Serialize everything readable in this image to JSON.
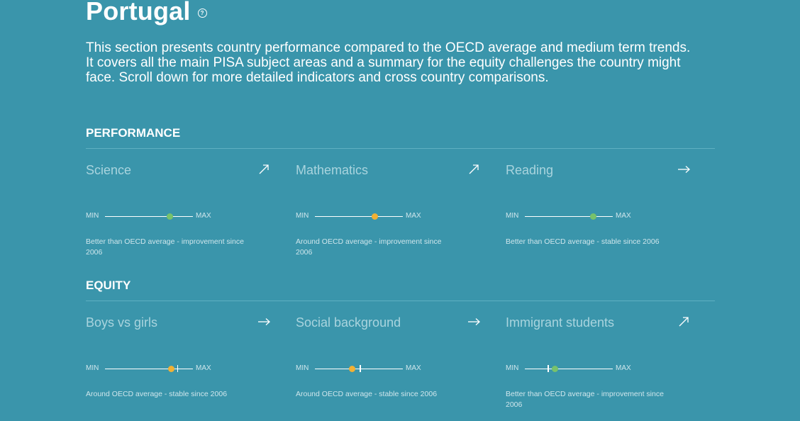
{
  "title": "Portugal",
  "help_icon": "question-circle-icon",
  "intro": "This section presents country performance compared to the OECD average and medium term trends. It covers all the main PISA subject areas and a summary for the equity challenges the country might face. Scroll down for more detailed indicators and cross country comparisons.",
  "scale_min_label": "MIN",
  "scale_max_label": "MAX",
  "colors": {
    "background": "#3a95ab",
    "better": "#78c26b",
    "around": "#f2b134"
  },
  "performance": {
    "heading": "PERFORMANCE",
    "items": [
      {
        "title": "Science",
        "trend": "arrow-up-right-icon",
        "value": 0.74,
        "status": "better",
        "description": "Better than OECD average - improvement since 2006"
      },
      {
        "title": "Mathematics",
        "trend": "arrow-up-right-icon",
        "value": 0.68,
        "status": "around",
        "description": "Around OECD average - improvement since 2006"
      },
      {
        "title": "Reading",
        "trend": "arrow-right-icon",
        "value": 0.78,
        "status": "better",
        "description": "Better than OECD average - stable since 2006"
      }
    ]
  },
  "equity": {
    "heading": "EQUITY",
    "items": [
      {
        "title": "Boys vs girls",
        "trend": "arrow-right-icon",
        "value": 0.75,
        "tick": 0.82,
        "status": "around",
        "description": "Around OECD average - stable since 2006"
      },
      {
        "title": "Social background",
        "trend": "arrow-right-icon",
        "value": 0.42,
        "tick": 0.51,
        "status": "around",
        "description": "Around OECD average - stable since 2006"
      },
      {
        "title": "Immigrant students",
        "trend": "arrow-up-right-icon",
        "value": 0.34,
        "tick": 0.26,
        "status": "better",
        "description": "Better than OECD average - improvement since 2006"
      }
    ]
  }
}
